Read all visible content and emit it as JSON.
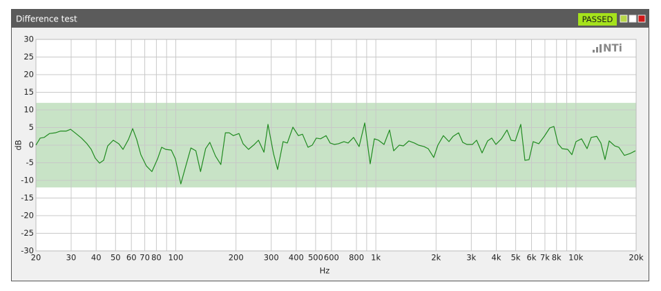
{
  "chart_data": {
    "type": "line",
    "title": "Difference test",
    "status": "PASSED",
    "logo": "NTi",
    "x_label": "Hz",
    "y_label": "dB",
    "xscale": "log",
    "grid": true,
    "xlim": [
      20,
      20000
    ],
    "ylim": [
      -30,
      30
    ],
    "xticks": [
      20,
      30,
      40,
      50,
      60,
      70,
      80,
      100,
      200,
      300,
      400,
      500,
      600,
      800,
      {
        "value": 1000,
        "label": "1k"
      },
      {
        "value": 2000,
        "label": "2k"
      },
      {
        "value": 3000,
        "label": "3k"
      },
      {
        "value": 4000,
        "label": "4k"
      },
      {
        "value": 5000,
        "label": "5k"
      },
      {
        "value": 6000,
        "label": "6k"
      },
      {
        "value": 7000,
        "label": "7k"
      },
      {
        "value": 8000,
        "label": "8k"
      },
      {
        "value": 10000,
        "label": "10k"
      },
      {
        "value": 20000,
        "label": "20k"
      }
    ],
    "x_minor_gridlines": [
      90,
      900,
      9000
    ],
    "yticks": [
      -30,
      -25,
      -20,
      -15,
      -10,
      -5,
      0,
      5,
      10,
      15,
      20,
      25,
      30
    ],
    "tolerance_band": [
      -12,
      12
    ],
    "band_color": "#c8e3c6",
    "color": "#1f8a1f",
    "x": [
      20,
      21,
      22,
      23.4,
      25,
      26.6,
      28.4,
      29.8,
      31.7,
      33.8,
      36,
      37.8,
      39.6,
      41.6,
      43.6,
      45.7,
      48.7,
      51.9,
      54.5,
      58,
      60.9,
      63.8,
      66.9,
      71.3,
      76,
      81.1,
      85,
      89.1,
      95,
      99.6,
      106,
      111,
      119,
      126,
      133,
      141,
      148,
      158,
      168,
      177,
      185,
      194,
      207,
      217,
      231,
      247,
      259,
      276,
      289,
      308,
      323,
      344,
      361,
      385,
      410,
      430,
      458,
      481,
      504,
      529,
      564,
      591,
      620,
      650,
      693,
      727,
      774,
      825,
      880,
      937,
      983,
      1031,
      1099,
      1171,
      1228,
      1309,
      1373,
      1463,
      1559,
      1635,
      1742,
      1827,
      1947,
      2042,
      2176,
      2320,
      2433,
      2592,
      2718,
      2852,
      3040,
      3188,
      3396,
      3620,
      3796,
      3982,
      4244,
      4524,
      4742,
      4974,
      5302,
      5560,
      5832,
      6116,
      6520,
      6948,
      7404,
      7764,
      8144,
      8540,
      9100,
      9548,
      10012,
      10670,
      11370,
      11926,
      12706,
      13328,
      13978,
      14666,
      15628,
      16390,
      17466,
      18612,
      19830
    ],
    "values": [
      0,
      2,
      2.2,
      3.3,
      3.5,
      4,
      4,
      4.5,
      3.3,
      2,
      0.4,
      -1.2,
      -3.7,
      -5.1,
      -4.3,
      -0.2,
      1.4,
      0.4,
      -1.2,
      1.6,
      4.7,
      1.6,
      -2.7,
      -5.9,
      -7.5,
      -3.9,
      -0.6,
      -1.2,
      -1.4,
      -3.9,
      -11,
      -6.9,
      -0.8,
      -1.6,
      -7.5,
      -1,
      0.8,
      -3.1,
      -5.5,
      3.5,
      3.5,
      2.7,
      3.3,
      0.4,
      -1.2,
      0.2,
      1.4,
      -2,
      5.9,
      -2.4,
      -6.9,
      1,
      0.6,
      5.1,
      2.7,
      3.1,
      -0.6,
      0,
      2,
      1.8,
      2.7,
      0.6,
      0.2,
      0.4,
      1,
      0.6,
      2.2,
      -0.4,
      6.3,
      -5.3,
      1.8,
      1.4,
      0.2,
      4.3,
      -1.6,
      0,
      -0.2,
      1.2,
      0.6,
      0,
      -0.4,
      -1,
      -3.5,
      0,
      2.7,
      1,
      2.5,
      3.5,
      0.8,
      0.2,
      0.2,
      1.4,
      -2.2,
      1.2,
      2,
      0.2,
      1.8,
      4.3,
      1.4,
      1.2,
      5.9,
      -4.3,
      -4.1,
      1,
      0.4,
      2.5,
      4.9,
      5.3,
      0.4,
      -1,
      -1.2,
      -2.7,
      1,
      1.8,
      -1,
      2.2,
      2.5,
      0.6,
      -4.1,
      1.2,
      -0.2,
      -0.6,
      -2.9,
      -2.4,
      -1.6
    ]
  }
}
